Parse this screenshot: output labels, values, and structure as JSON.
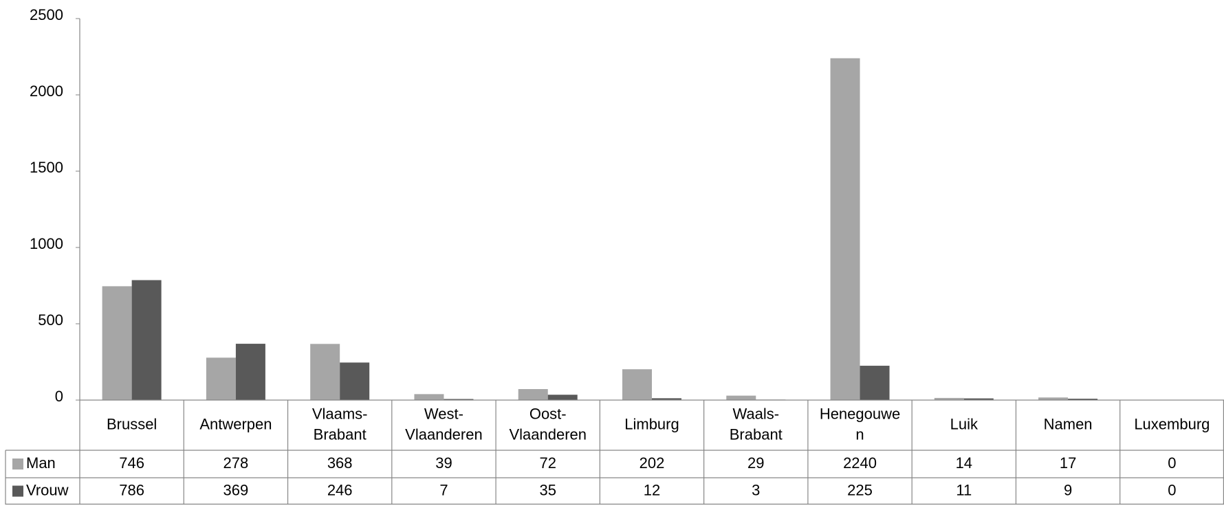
{
  "chart_data": {
    "type": "bar",
    "categories": [
      [
        "Brussel"
      ],
      [
        "Antwerpen"
      ],
      [
        "Vlaams-",
        "Brabant"
      ],
      [
        "West-",
        "Vlaanderen"
      ],
      [
        "Oost-",
        "Vlaanderen"
      ],
      [
        "Limburg"
      ],
      [
        "Waals-",
        "Brabant"
      ],
      [
        "Henegouwe",
        "n"
      ],
      [
        "Luik"
      ],
      [
        "Namen"
      ],
      [
        "Luxemburg"
      ]
    ],
    "series": [
      {
        "name": "Man",
        "color": "#A6A6A6",
        "values": [
          746,
          278,
          368,
          39,
          72,
          202,
          29,
          2240,
          14,
          17,
          0
        ]
      },
      {
        "name": "Vrouw",
        "color": "#595959",
        "values": [
          786,
          369,
          246,
          7,
          35,
          12,
          3,
          225,
          11,
          9,
          0
        ]
      }
    ],
    "ylim": [
      0,
      2500
    ],
    "yticks": [
      0,
      500,
      1000,
      1500,
      2000,
      2500
    ],
    "legend": "data-table",
    "grid": false,
    "title": "",
    "xlabel": "",
    "ylabel": ""
  }
}
